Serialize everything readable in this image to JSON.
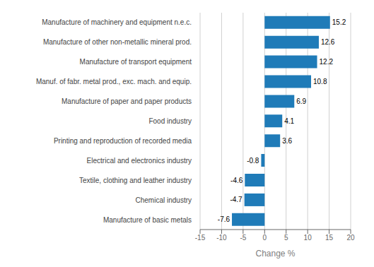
{
  "chart_data": {
    "type": "bar",
    "orientation": "horizontal",
    "categories": [
      "Manufacture of basic metals",
      "Chemical industry",
      "Textile, clothing and leather industry",
      "Electrical and electronics industry",
      "Printing and reproduction of recorded media",
      "Food industry",
      "Manufacture of paper and paper products",
      "Manuf. of fabr. metal prod., exc. mach. and equip.",
      "Manufacture of transport equipment",
      "Manufacture of other non-metallic mineral prod.",
      "Manufacture of machinery and equipment n.e.c."
    ],
    "values": [
      -7.6,
      -4.7,
      -4.6,
      -0.8,
      3.6,
      4.1,
      6.9,
      10.8,
      12.2,
      12.6,
      15.2
    ],
    "color": "#1f7bb8",
    "xlabel": "Change %",
    "xlim": [
      -15,
      20
    ],
    "xticks": [
      -15,
      -10,
      -5,
      0,
      5,
      10,
      15,
      20
    ],
    "grid": true,
    "data_labels": true
  }
}
